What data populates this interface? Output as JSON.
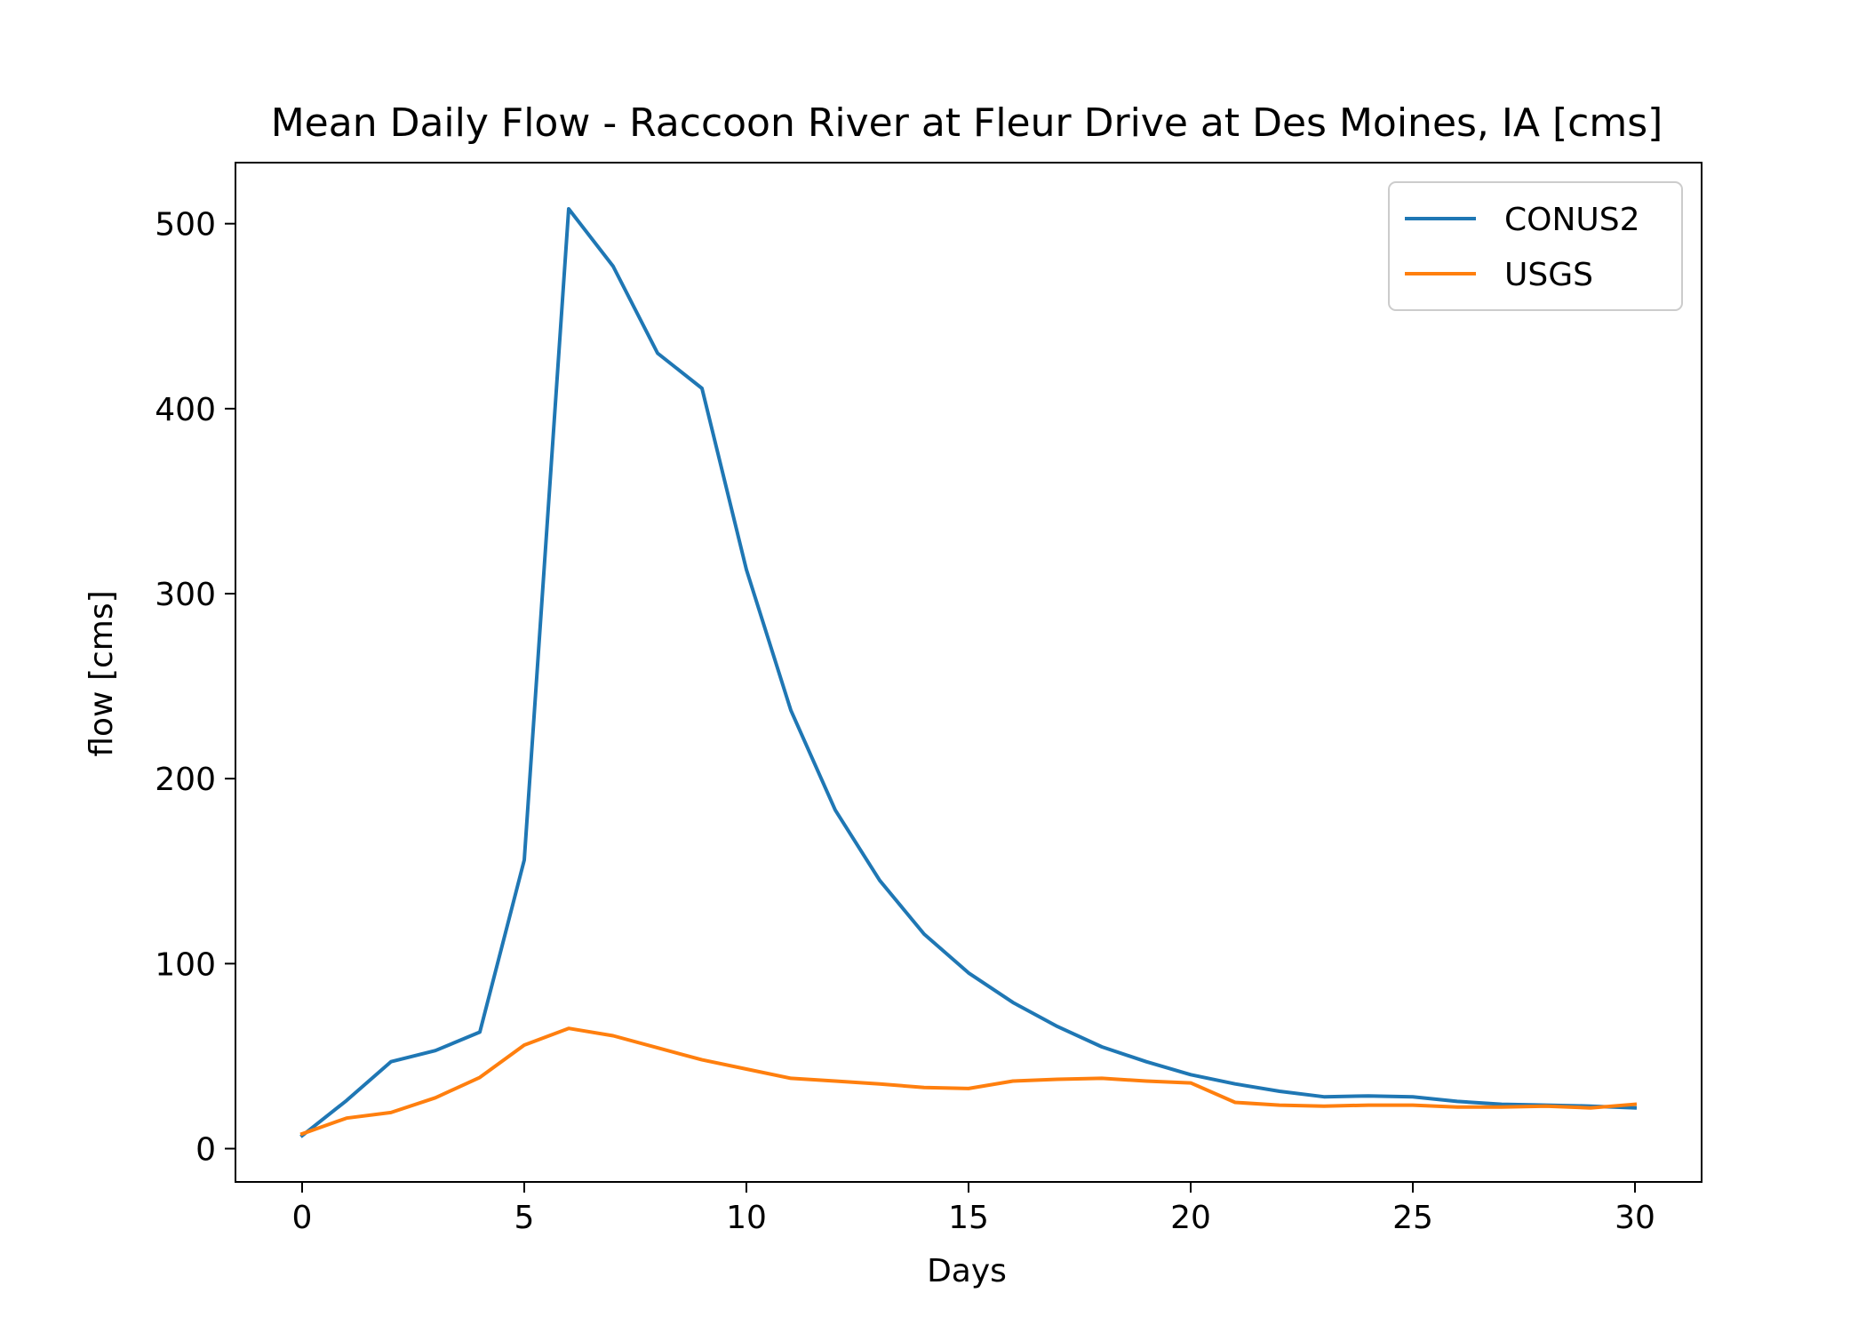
{
  "chart_data": {
    "type": "line",
    "title": "Mean Daily Flow - Raccoon River at Fleur Drive at Des Moines, IA [cms]",
    "xlabel": "Days",
    "ylabel": "flow [cms]",
    "xlim": [
      -1.5,
      31.5
    ],
    "ylim": [
      -18,
      533
    ],
    "xticks": [
      0,
      5,
      10,
      15,
      20,
      25,
      30
    ],
    "yticks": [
      0,
      100,
      200,
      300,
      400,
      500
    ],
    "grid": false,
    "legend_position": "top-right",
    "x": [
      0,
      1,
      2,
      3,
      4,
      5,
      6,
      7,
      8,
      9,
      10,
      11,
      12,
      13,
      14,
      15,
      16,
      17,
      18,
      19,
      20,
      21,
      22,
      23,
      24,
      25,
      26,
      27,
      28,
      29,
      30
    ],
    "series": [
      {
        "name": "CONUS2",
        "color": "#1f77b4",
        "values": [
          7,
          26,
          47,
          53,
          63,
          156,
          508,
          477,
          430,
          411,
          313,
          237,
          183,
          145,
          116,
          95,
          79,
          66,
          55,
          47,
          40,
          35,
          31,
          28,
          28.5,
          28,
          25.5,
          24,
          23.5,
          23,
          22
        ]
      },
      {
        "name": "USGS",
        "color": "#ff7f0e",
        "values": [
          8,
          16.5,
          19.5,
          27.5,
          38.5,
          56,
          65,
          61,
          54.5,
          48,
          43,
          38,
          36.5,
          35,
          33,
          32.5,
          36.5,
          37.5,
          38,
          36.5,
          35.5,
          25,
          23.5,
          23,
          23.5,
          23.5,
          22.5,
          22.5,
          23,
          22,
          24
        ]
      }
    ]
  }
}
